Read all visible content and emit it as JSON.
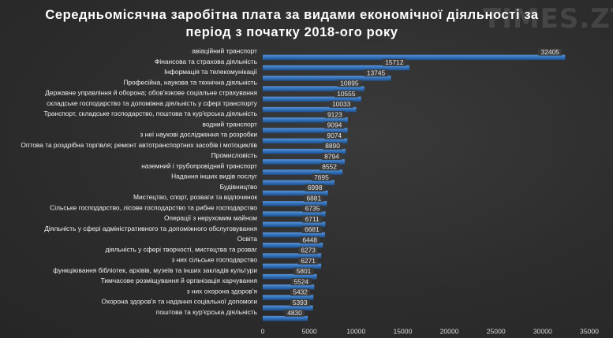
{
  "page": {
    "watermark": "TIMES.ZT"
  },
  "chart_data": {
    "type": "bar",
    "orientation": "horizontal",
    "title": "Середньомісячна  заробітна  плата за видами економічної  діяльності  за період  з початку  2018-ого  року",
    "xlim": [
      0,
      35000
    ],
    "xticks": [
      0,
      5000,
      10000,
      15000,
      20000,
      25000,
      30000,
      35000
    ],
    "grid": false,
    "bar_color": "#2f6db5",
    "categories": [
      "авіаційний транспорт",
      "Фінансова та страхова діяльність",
      "Інформація та телекомунікації",
      "Професійна, наукова та технічна діяльність",
      "Державне управління й оборона; обов'язкове соціальне страхування",
      "складське господарство та допоміжна діяльність у сфері транспорту",
      "Транспорт, складське господарство, поштова та кур'єрська діяльність",
      "водний транспорт",
      "з неї наукові дослідження та розробки",
      "Оптова та роздрібна торгівля; ремонт автотранспортних засобів і мотоциклів",
      "Промисловість",
      "наземний і трубопровідний транспорт",
      "Надання інших видів послуг",
      "Будівництво",
      "Мистецтво, спорт, розваги та відпочинок",
      "Сільське господарство, лісове господарство та рибне господарство",
      "Операції з нерухомим майном",
      "Діяльність у сфері адміністративного та допоміжного обслуговування",
      "Освіта",
      "діяльність у сфері творчості, мистецтва та розваг",
      "з них сільське господарство",
      "функціювання бібліотек, архівів, музеїв та інших закладів культури",
      "Тимчасове розміщування й організація харчування",
      "з них охорона здоров'я",
      "Охорона здоров'я та надання соціальної допомоги",
      "поштова та кур'єрська діяльність"
    ],
    "values": [
      32405,
      15712,
      13745,
      10895,
      10555,
      10033,
      9123,
      9094,
      9074,
      8890,
      8794,
      8552,
      7695,
      6998,
      6881,
      6735,
      6711,
      6681,
      6448,
      6273,
      6271,
      5801,
      5524,
      5432,
      5393,
      4830
    ]
  }
}
